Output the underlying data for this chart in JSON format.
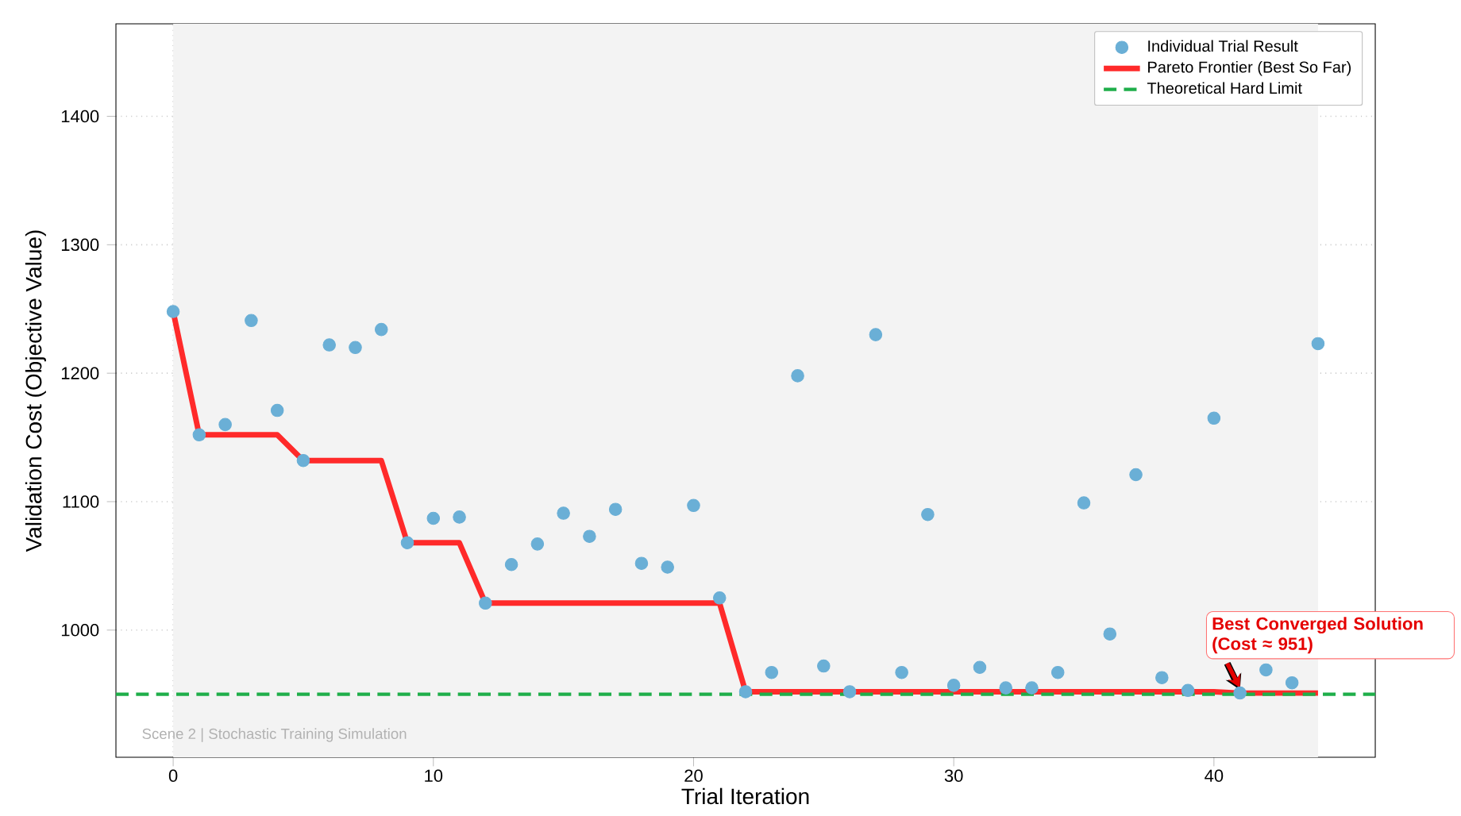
{
  "chart_data": {
    "type": "scatter",
    "xlabel": "Trial Iteration",
    "ylabel": "Validation Cost (Objective Value)",
    "x": [
      0,
      1,
      2,
      3,
      4,
      5,
      6,
      7,
      8,
      9,
      10,
      11,
      12,
      13,
      14,
      15,
      16,
      17,
      18,
      19,
      20,
      21,
      22,
      23,
      24,
      25,
      26,
      27,
      28,
      29,
      30,
      31,
      32,
      33,
      34,
      35,
      36,
      37,
      38,
      39,
      40,
      41,
      42,
      43,
      44
    ],
    "series": [
      {
        "name": "Individual Trial Result",
        "type": "scatter",
        "color": "#6aafd6",
        "values": [
          1248,
          1152,
          1160,
          1241,
          1171,
          1132,
          1222,
          1220,
          1234,
          1068,
          1087,
          1088,
          1021,
          1051,
          1067,
          1091,
          1073,
          1094,
          1052,
          1049,
          1097,
          1025,
          952,
          967,
          1198,
          972,
          952,
          1230,
          967,
          1090,
          957,
          971,
          955,
          955,
          967,
          1099,
          997,
          1121,
          963,
          953,
          1165,
          951,
          969,
          959,
          1223
        ]
      },
      {
        "name": "Pareto Frontier (Best So Far)",
        "type": "line",
        "color": "#ff2a2a",
        "marker": "none",
        "values": [
          1248,
          1152,
          1152,
          1152,
          1152,
          1132,
          1132,
          1132,
          1132,
          1068,
          1068,
          1068,
          1021,
          1021,
          1021,
          1021,
          1021,
          1021,
          1021,
          1021,
          1021,
          1021,
          952,
          952,
          952,
          952,
          952,
          952,
          952,
          952,
          952,
          952,
          952,
          952,
          952,
          952,
          952,
          952,
          952,
          952,
          952,
          951,
          951,
          951,
          951
        ]
      }
    ],
    "ref_lines": [
      {
        "axis": "y",
        "value": 950,
        "label": "Theoretical Hard Limit",
        "color": "#1fae4a",
        "line_style": "dashed"
      }
    ],
    "bands": [
      {
        "axis": "x",
        "from": 0,
        "to": 44,
        "color": "#f3f3f3"
      }
    ],
    "annotations": [
      {
        "text": "Best Converged Solution (Cost ≈ 951)",
        "x": 41,
        "y": 951
      },
      "Scene 2 | Stochastic Training Simulation"
    ],
    "xlim": [
      -2.2,
      46.2
    ],
    "ylim": [
      901,
      1472
    ],
    "xticks": [
      0,
      10,
      20,
      30,
      40
    ],
    "yticks": [
      1000,
      1100,
      1200,
      1300,
      1400
    ],
    "grid": true,
    "legend": "top right",
    "marker": "circle"
  }
}
